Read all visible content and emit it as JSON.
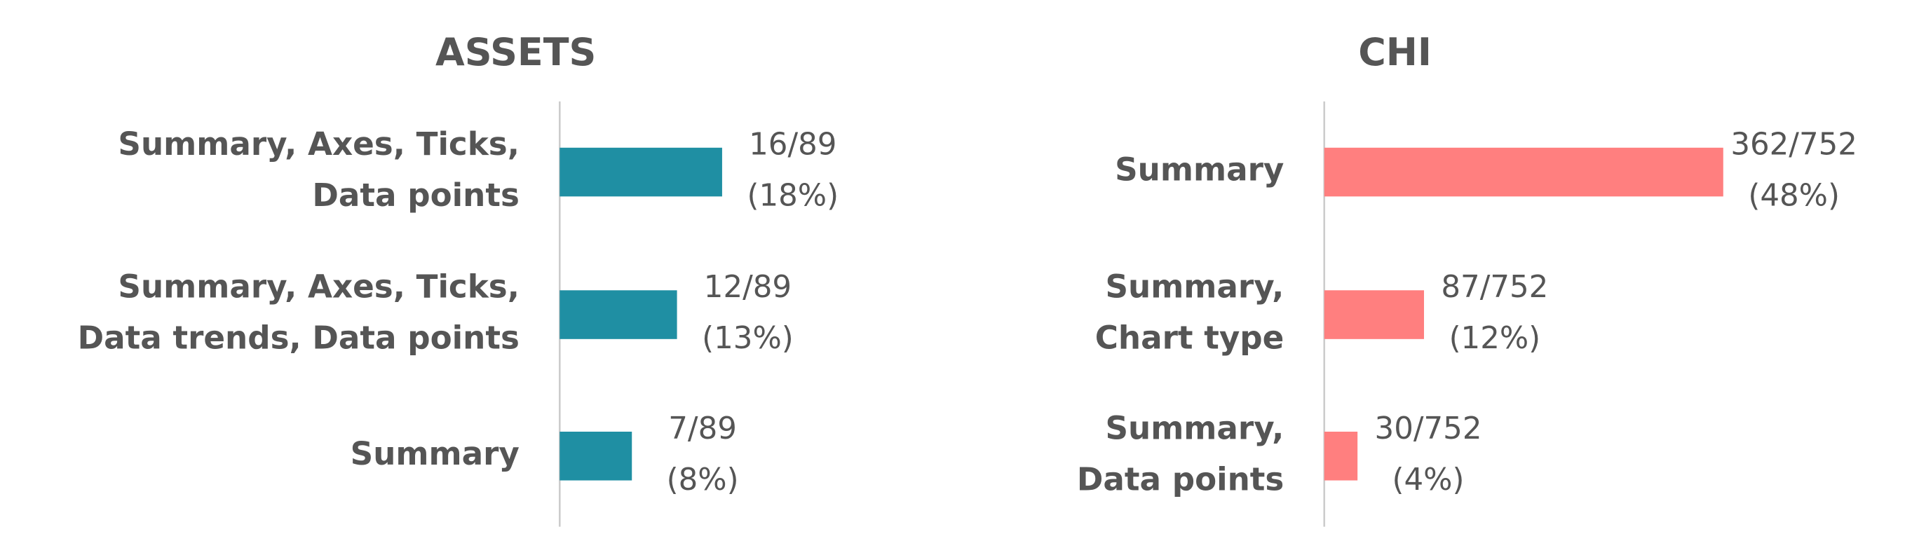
{
  "chart_data": [
    {
      "type": "bar",
      "orientation": "horizontal",
      "title": "ASSETS",
      "color": "#1f8fa3",
      "categories": [
        [
          "Summary, Axes, Ticks,",
          "Data points"
        ],
        [
          "Summary, Axes, Ticks,",
          "Data trends, Data points"
        ],
        [
          "Summary"
        ]
      ],
      "values": [
        18,
        13,
        8
      ],
      "value_labels": [
        [
          "16/89",
          "(18%)"
        ],
        [
          "12/89",
          "(13%)"
        ],
        [
          "7/89",
          "(8%)"
        ]
      ],
      "xlim": [
        0,
        40
      ]
    },
    {
      "type": "bar",
      "orientation": "horizontal",
      "title": "CHI",
      "color": "#ff7f7f",
      "categories": [
        [
          "Summary"
        ],
        [
          "Summary,",
          "Chart type"
        ],
        [
          "Summary,",
          "Data points"
        ]
      ],
      "values": [
        48,
        12,
        4
      ],
      "value_labels": [
        [
          "362/752",
          "(48%)"
        ],
        [
          "87/752",
          "(12%)"
        ],
        [
          "30/752",
          "(4%)"
        ]
      ],
      "xlim": [
        0,
        60
      ]
    }
  ]
}
